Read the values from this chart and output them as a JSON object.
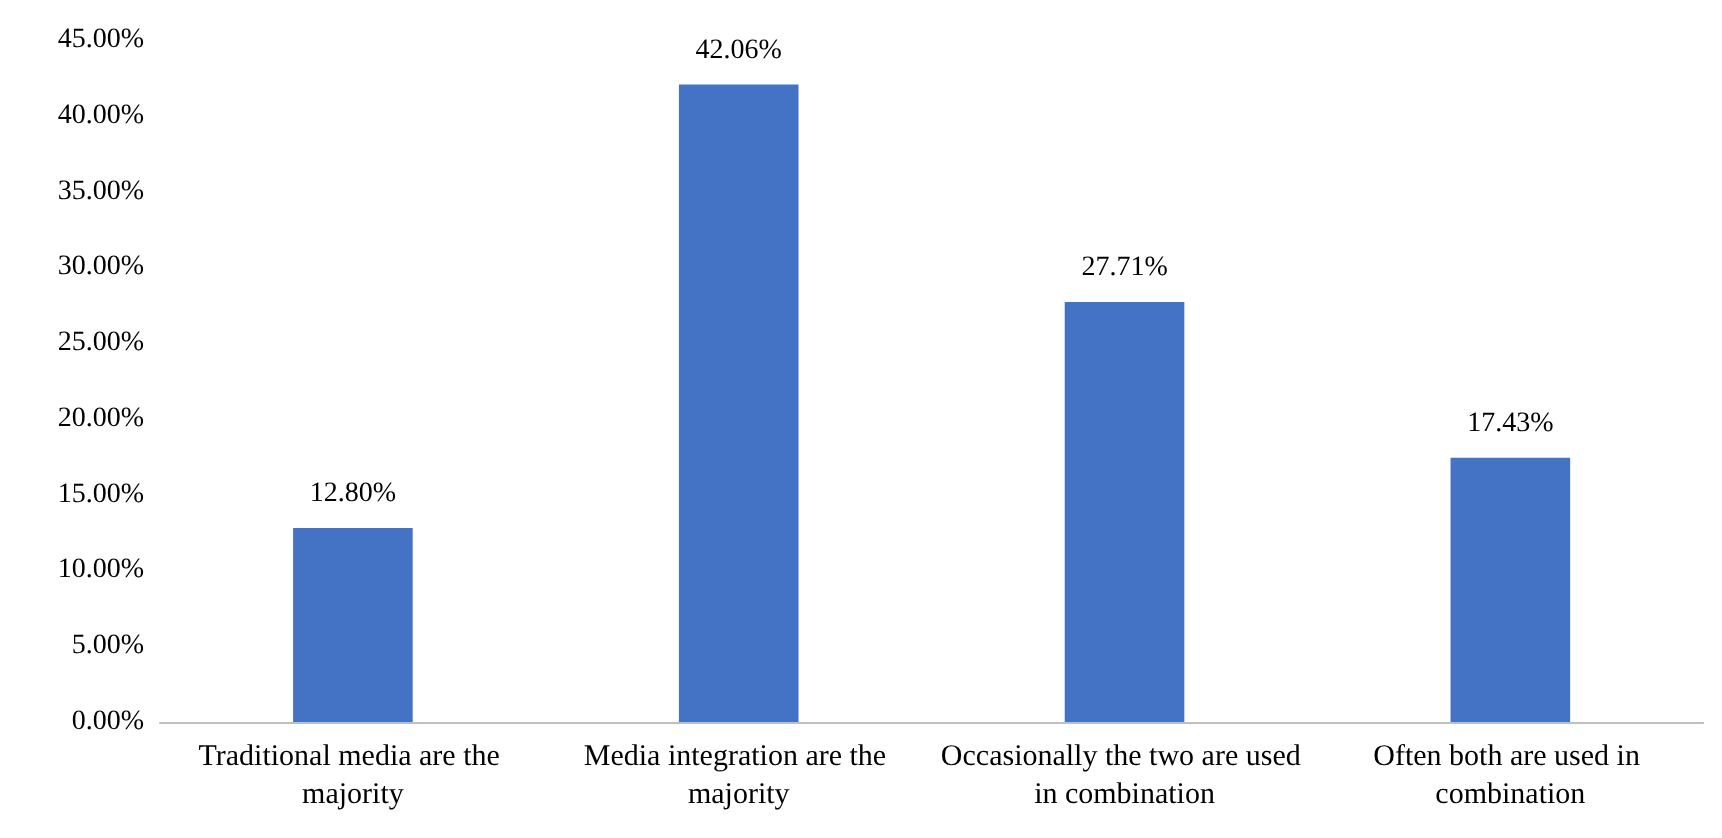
{
  "chart_data": {
    "type": "bar",
    "categories": [
      "Traditional media are the majority",
      "Media integration are the majority",
      "Occasionally the two are used in combination",
      "Often both are used in combination"
    ],
    "values": [
      12.8,
      42.06,
      27.71,
      17.43
    ],
    "value_labels": [
      "12.80%",
      "42.06%",
      "27.71%",
      "17.43%"
    ],
    "color": "#4472c4",
    "ylim": [
      0,
      45
    ],
    "yticks": [
      {
        "value": 0,
        "label": "0.00%"
      },
      {
        "value": 5,
        "label": "5.00%"
      },
      {
        "value": 10,
        "label": "10.00%"
      },
      {
        "value": 15,
        "label": "15.00%"
      },
      {
        "value": 20,
        "label": "20.00%"
      },
      {
        "value": 25,
        "label": "25.00%"
      },
      {
        "value": 30,
        "label": "30.00%"
      },
      {
        "value": 35,
        "label": "35.00%"
      },
      {
        "value": 40,
        "label": "40.00%"
      },
      {
        "value": 45,
        "label": "45.00%"
      }
    ],
    "grid": false
  }
}
